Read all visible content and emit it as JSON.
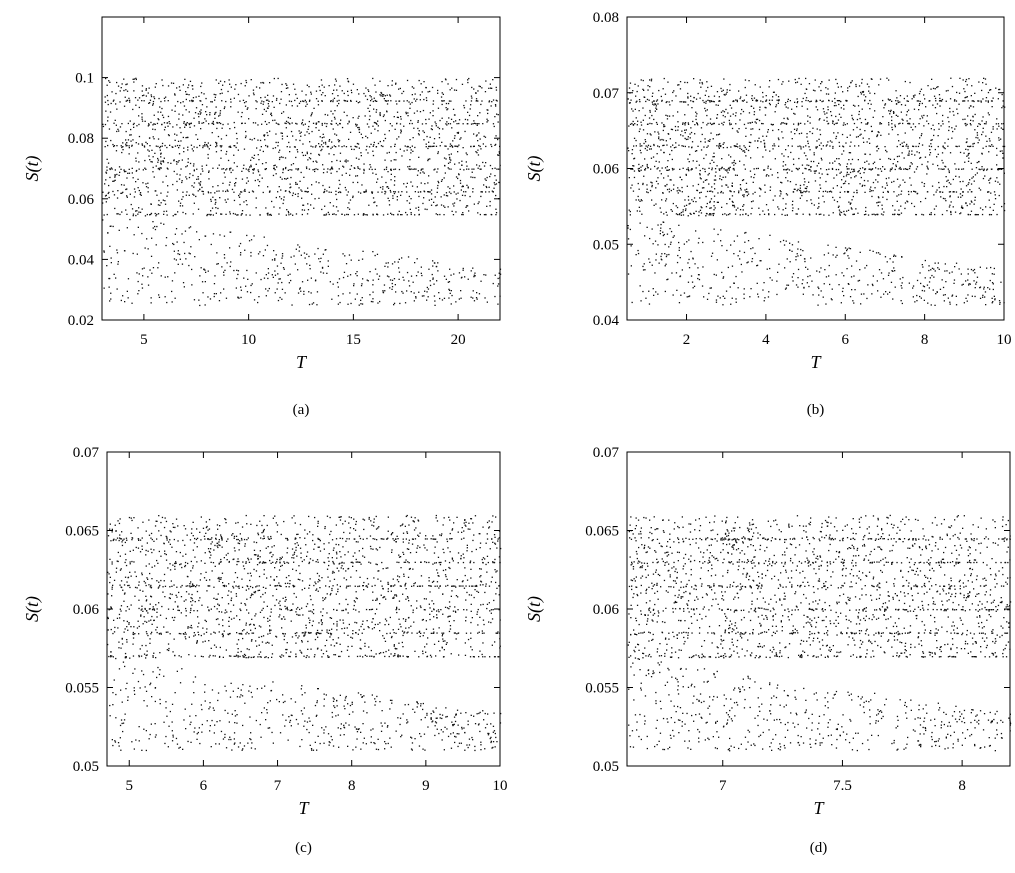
{
  "figure": {
    "caption_style": "serif"
  },
  "chart_data": [
    {
      "type": "scatter",
      "panel": "(a)",
      "caption": "(a)",
      "xlabel": "T",
      "ylabel": "S(t)",
      "xlim": [
        3,
        22
      ],
      "ylim": [
        0.02,
        0.12
      ],
      "xticks": [
        5,
        10,
        15,
        20
      ],
      "yticks": [
        0.02,
        0.04,
        0.06,
        0.08,
        0.1
      ],
      "xtick_labels": [
        "5",
        "10",
        "15",
        "20"
      ],
      "ytick_labels": [
        "0.02",
        "0.04",
        "0.06",
        "0.08",
        "0.1"
      ],
      "grid": false,
      "description_points": {
        "upper_branch": [
          [
            6.5,
            0.106
          ],
          [
            10,
            0.099
          ],
          [
            15,
            0.098
          ],
          [
            20,
            0.097
          ],
          [
            22,
            0.096
          ]
        ],
        "middle_branches": [
          [
            7,
            0.082
          ],
          [
            22,
            0.081
          ],
          [
            8,
            0.074
          ],
          [
            22,
            0.073
          ]
        ],
        "lower_branches": [
          [
            10,
            0.068
          ],
          [
            22,
            0.058
          ]
        ],
        "scatter_region_T_range": [
          3.5,
          6.5
        ]
      }
    },
    {
      "type": "scatter",
      "panel": "(b)",
      "caption": "(b)",
      "xlabel": "T",
      "ylabel": "S(t)",
      "xlim": [
        0.5,
        10
      ],
      "ylim": [
        0.04,
        0.08
      ],
      "xticks": [
        2,
        4,
        6,
        8,
        10
      ],
      "yticks": [
        0.04,
        0.05,
        0.06,
        0.07,
        0.08
      ],
      "xtick_labels": [
        "2",
        "4",
        "6",
        "8",
        "10"
      ],
      "ytick_labels": [
        "0.04",
        "0.05",
        "0.06",
        "0.07",
        "0.08"
      ],
      "grid": false
    },
    {
      "type": "scatter",
      "panel": "(c)",
      "caption": "(c)",
      "xlabel": "T",
      "ylabel": "S(t)",
      "xlim": [
        4.7,
        10
      ],
      "ylim": [
        0.05,
        0.07
      ],
      "xticks": [
        5,
        6,
        7,
        8,
        9,
        10
      ],
      "yticks": [
        0.05,
        0.055,
        0.06,
        0.065,
        0.07
      ],
      "xtick_labels": [
        "5",
        "6",
        "7",
        "8",
        "9",
        "10"
      ],
      "ytick_labels": [
        "0.05",
        "0.055",
        "0.06",
        "0.065",
        "0.07"
      ],
      "grid": false
    },
    {
      "type": "scatter",
      "panel": "(d)",
      "caption": "(d)",
      "xlabel": "T",
      "ylabel": "S(t)",
      "xlim": [
        6.6,
        8.2
      ],
      "ylim": [
        0.05,
        0.07
      ],
      "xticks": [
        7,
        7.5,
        8
      ],
      "yticks": [
        0.05,
        0.055,
        0.06,
        0.065,
        0.07
      ],
      "xtick_labels": [
        "7",
        "7.5",
        "8"
      ],
      "ytick_labels": [
        "0.05",
        "0.055",
        "0.06",
        "0.065",
        "0.07"
      ],
      "grid": false
    }
  ]
}
